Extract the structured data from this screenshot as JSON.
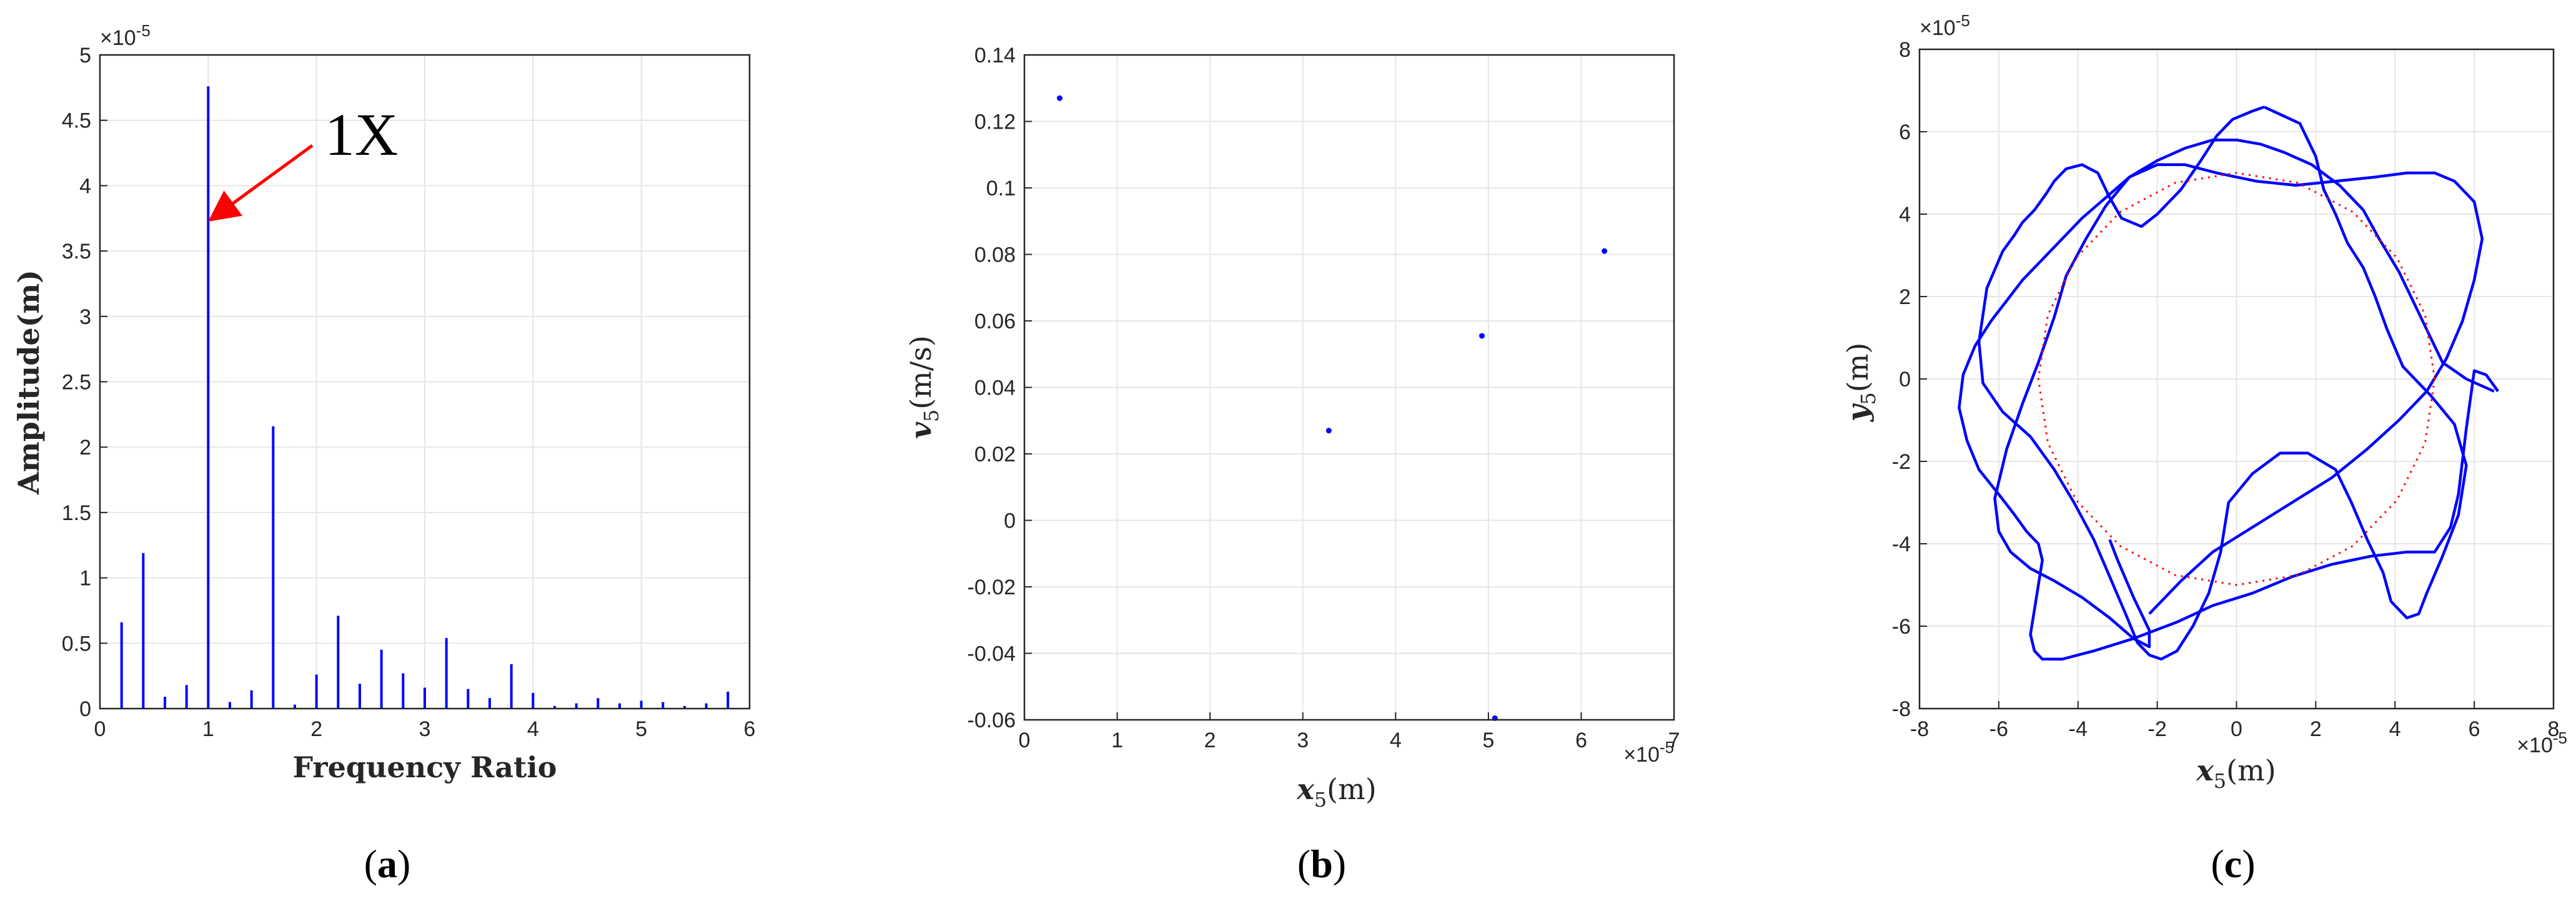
{
  "colors": {
    "series": "#0000ff",
    "circle": "#ff0000",
    "grid": "#e6e6e6",
    "axis": "#262626"
  },
  "chart_data": [
    {
      "type": "bar",
      "panel": "(a)",
      "caption_open": "(",
      "caption_letter": "a",
      "caption_close": ")",
      "xlabel": "Frequency Ratio",
      "ylabel": "Amplitude(m)",
      "y_scale_label": "×10",
      "y_scale_exp": "-5",
      "xlim": [
        0,
        6
      ],
      "ylim": [
        0,
        5
      ],
      "grid": true,
      "xticks": [
        "0",
        "1",
        "2",
        "3",
        "4",
        "5",
        "6"
      ],
      "yticks": [
        "0",
        "0.5",
        "1",
        "1.5",
        "2",
        "2.5",
        "3",
        "3.5",
        "4",
        "4.5",
        "5"
      ],
      "x": [
        0.2,
        0.4,
        0.6,
        0.8,
        1.0,
        1.2,
        1.4,
        1.6,
        1.8,
        2.0,
        2.2,
        2.4,
        2.6,
        2.8,
        3.0,
        3.2,
        3.4,
        3.6,
        3.8,
        4.0,
        4.2,
        4.4,
        4.6,
        4.8,
        5.0,
        5.2,
        5.4,
        5.6,
        5.8
      ],
      "values": [
        0.66,
        1.19,
        0.09,
        0.18,
        4.76,
        0.05,
        0.14,
        2.16,
        0.03,
        0.26,
        0.71,
        0.19,
        0.45,
        0.27,
        0.16,
        0.54,
        0.15,
        0.08,
        0.34,
        0.12,
        0.02,
        0.04,
        0.08,
        0.04,
        0.06,
        0.05,
        0.02,
        0.04,
        0.13
      ],
      "annotation": {
        "text": "1X",
        "x": 1.0,
        "y": 3.75
      }
    },
    {
      "type": "scatter",
      "panel": "(b)",
      "caption_open": "(",
      "caption_letter": "b",
      "caption_close": ")",
      "xlabel_main": "x",
      "xlabel_sub": "5",
      "xlabel_unit": "(m)",
      "ylabel_main": "v",
      "ylabel_sub": "5",
      "ylabel_unit": "(m/s)",
      "x_scale_label": "×10",
      "x_scale_exp": "-5",
      "xlim": [
        0,
        7
      ],
      "ylim": [
        -0.06,
        0.14
      ],
      "grid": true,
      "xticks": [
        "0",
        "1",
        "2",
        "3",
        "4",
        "5",
        "6",
        "7"
      ],
      "yticks": [
        "-0.06",
        "-0.04",
        "-0.02",
        "0",
        "0.02",
        "0.04",
        "0.06",
        "0.08",
        "0.1",
        "0.12",
        "0.14"
      ],
      "points": [
        {
          "x": 0.38,
          "y": 0.127
        },
        {
          "x": 3.28,
          "y": 0.027
        },
        {
          "x": 4.93,
          "y": 0.0555
        },
        {
          "x": 6.25,
          "y": 0.081
        },
        {
          "x": 5.07,
          "y": -0.0595
        }
      ]
    },
    {
      "type": "line",
      "panel": "(c)",
      "caption_open": "(",
      "caption_letter": "c",
      "caption_close": ")",
      "xlabel_main": "x",
      "xlabel_sub": "5",
      "xlabel_unit": "(m)",
      "ylabel_main": "y",
      "ylabel_sub": "5",
      "ylabel_unit": "(m)",
      "x_scale_label": "×10",
      "x_scale_exp": "-5",
      "y_scale_label": "×10",
      "y_scale_exp": "-5",
      "xlim": [
        -8,
        8
      ],
      "ylim": [
        -8,
        8
      ],
      "grid": true,
      "xticks": [
        "-8",
        "-6",
        "-4",
        "-2",
        "0",
        "2",
        "4",
        "6",
        "8"
      ],
      "yticks": [
        "-8",
        "-6",
        "-4",
        "-2",
        "0",
        "2",
        "4",
        "6",
        "8"
      ],
      "series": [
        {
          "style": "solid",
          "x": [
            0.7,
            1.6,
            2.0,
            2.2,
            2.5,
            2.8,
            3.2,
            3.5,
            3.8,
            4.2,
            4.9,
            5.5,
            5.8,
            5.6,
            5.2,
            4.8,
            4.6,
            4.3,
            3.9,
            3.7,
            3.3,
            2.9,
            2.5,
            1.8,
            1.1,
            0.4,
            -0.2,
            -0.4,
            -0.7,
            -1.1,
            -1.5,
            -1.9,
            -2.2,
            -2.5,
            -2.8,
            -3.2,
            -3.6,
            -4.1,
            -4.6,
            -5.2,
            -5.9,
            -6.4,
            -6.5,
            -6.3,
            -5.9,
            -5.6,
            -5.4,
            -5.1,
            -4.8,
            -4.6,
            -4.3,
            -3.9,
            -3.5,
            -3.2,
            -2.9,
            -2.4,
            -2.0,
            -1.4,
            -0.9,
            -0.5,
            -0.1,
            0.4,
            0.7
          ],
          "y": [
            6.6,
            6.2,
            5.4,
            4.6,
            4.0,
            3.3,
            2.7,
            2.0,
            1.2,
            0.3,
            -0.4,
            -1.1,
            -2.1,
            -3.3,
            -4.3,
            -5.2,
            -5.7,
            -5.8,
            -5.4,
            -4.7,
            -3.9,
            -3.0,
            -2.2,
            -1.8,
            -1.8,
            -2.3,
            -3.0,
            -4.2,
            -5.2,
            -6.0,
            -6.6,
            -6.8,
            -6.7,
            -6.4,
            -5.7,
            -4.8,
            -3.9,
            -3.0,
            -2.2,
            -1.4,
            -0.8,
            -0.1,
            0.9,
            2.2,
            3.1,
            3.5,
            3.8,
            4.1,
            4.5,
            4.8,
            5.1,
            5.2,
            5.0,
            4.4,
            3.9,
            3.7,
            4.0,
            4.6,
            5.3,
            5.9,
            6.3,
            6.5,
            6.6
          ]
        },
        {
          "style": "solid",
          "x": [
            6.5,
            5.8,
            5.2,
            4.9,
            4.5,
            4.1,
            3.6,
            3.2,
            2.6,
            1.9,
            1.2,
            0.6,
            0.0,
            -0.6,
            -1.3,
            -2.0,
            -2.7,
            -3.3,
            -3.9,
            -4.4,
            -4.9,
            -5.4,
            -5.8,
            -6.2,
            -6.6,
            -6.9,
            -7.0,
            -6.8,
            -6.5,
            -6.0,
            -5.6,
            -5.3,
            -5.0,
            -4.9,
            -5.0,
            -5.1,
            -5.2,
            -5.1,
            -4.9,
            -4.4,
            -3.6,
            -2.6,
            -1.5,
            -0.6,
            0.4,
            1.4,
            2.4,
            3.4,
            4.3,
            5.0,
            5.4,
            5.6,
            5.7,
            5.8,
            5.9,
            6.0,
            6.3,
            6.6
          ],
          "y": [
            -0.3,
            0.0,
            0.4,
            1.0,
            1.8,
            2.6,
            3.4,
            4.1,
            4.7,
            5.2,
            5.5,
            5.7,
            5.8,
            5.8,
            5.6,
            5.3,
            4.9,
            4.4,
            3.9,
            3.4,
            2.9,
            2.4,
            1.9,
            1.4,
            0.8,
            0.1,
            -0.7,
            -1.5,
            -2.2,
            -2.8,
            -3.3,
            -3.7,
            -4.0,
            -4.4,
            -5.0,
            -5.6,
            -6.2,
            -6.6,
            -6.8,
            -6.8,
            -6.6,
            -6.3,
            -5.9,
            -5.5,
            -5.2,
            -4.8,
            -4.5,
            -4.3,
            -4.2,
            -4.2,
            -3.6,
            -2.8,
            -2.0,
            -1.2,
            -0.5,
            0.2,
            0.1,
            -0.3
          ]
        },
        {
          "style": "solid",
          "x": [
            -2.2,
            -1.4,
            -0.6,
            0.4,
            1.4,
            2.4,
            3.3,
            4.1,
            4.8,
            5.3,
            5.7,
            6.0,
            6.2,
            6.0,
            5.5,
            5.0,
            4.3,
            3.5,
            2.5,
            1.5,
            0.5,
            -0.5,
            -1.3,
            -2.0,
            -2.7,
            -3.3,
            -3.8,
            -4.3,
            -4.6,
            -5.0,
            -5.4,
            -5.8,
            -6.1,
            -6.0,
            -5.7,
            -5.2,
            -4.6,
            -3.9,
            -3.2,
            -2.6,
            -2.2,
            -2.2,
            -2.6,
            -3.0,
            -3.2
          ],
          "y": [
            -5.7,
            -4.9,
            -4.2,
            -3.6,
            -3.0,
            -2.4,
            -1.7,
            -1.0,
            -0.3,
            0.5,
            1.4,
            2.4,
            3.4,
            4.3,
            4.8,
            5.0,
            5.0,
            4.9,
            4.8,
            4.7,
            4.8,
            5.0,
            5.2,
            5.2,
            4.9,
            4.2,
            3.4,
            2.5,
            1.5,
            0.4,
            -0.6,
            -1.7,
            -2.9,
            -3.7,
            -4.2,
            -4.6,
            -4.9,
            -5.3,
            -5.8,
            -6.3,
            -6.5,
            -6.1,
            -5.3,
            -4.4,
            -3.9
          ]
        },
        {
          "style": "dotted",
          "x": [
            5.0,
            4.76,
            4.05,
            2.94,
            1.55,
            0.0,
            -1.55,
            -2.94,
            -4.05,
            -4.76,
            -5.0,
            -4.76,
            -4.05,
            -2.94,
            -1.55,
            0.0,
            1.55,
            2.94,
            4.05,
            4.76,
            5.0
          ],
          "y": [
            0.0,
            1.55,
            2.94,
            4.05,
            4.76,
            5.0,
            4.76,
            4.05,
            2.94,
            1.55,
            0.0,
            -1.55,
            -2.94,
            -4.05,
            -4.76,
            -5.0,
            -4.76,
            -4.05,
            -2.94,
            -1.55,
            0.0
          ]
        }
      ]
    }
  ]
}
